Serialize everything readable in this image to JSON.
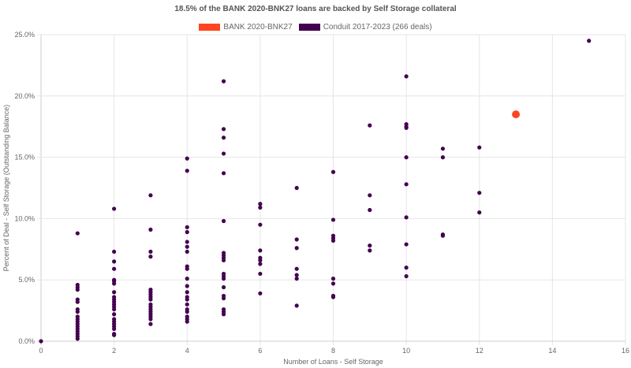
{
  "chart_data": {
    "type": "scatter",
    "title": "18.5% of the BANK 2020-BNK27 loans are backed by Self Storage collateral",
    "xlabel": "Number of Loans - Self Storage",
    "ylabel": "Percent of Deal - Self Storage (Outstanding Balance)",
    "xlim": [
      0,
      16
    ],
    "ylim": [
      0,
      25
    ],
    "x_ticks": [
      "0",
      "2",
      "4",
      "6",
      "8",
      "10",
      "12",
      "14",
      "16"
    ],
    "y_ticks": [
      "0.0%",
      "5.0%",
      "10.0%",
      "15.0%",
      "20.0%",
      "25.0%"
    ],
    "grid": true,
    "legend_placement": "top",
    "series": [
      {
        "name": "BANK 2020-BNK27",
        "color": "#ff4422",
        "points": [
          [
            13,
            18.5
          ]
        ]
      },
      {
        "name": "Conduit 2017-2023 (266 deals)",
        "color": "#44004f",
        "points": [
          [
            0,
            0.0
          ],
          [
            1,
            8.8
          ],
          [
            1,
            4.6
          ],
          [
            1,
            4.4
          ],
          [
            1,
            4.2
          ],
          [
            1,
            3.4
          ],
          [
            1,
            3.2
          ],
          [
            1,
            2.6
          ],
          [
            1,
            2.4
          ],
          [
            1,
            2.0
          ],
          [
            1,
            1.8
          ],
          [
            1,
            1.6
          ],
          [
            1,
            1.4
          ],
          [
            1,
            1.2
          ],
          [
            1,
            1.0
          ],
          [
            1,
            0.8
          ],
          [
            1,
            0.6
          ],
          [
            1,
            0.4
          ],
          [
            1,
            0.2
          ],
          [
            2,
            10.8
          ],
          [
            2,
            7.3
          ],
          [
            2,
            6.5
          ],
          [
            2,
            5.9
          ],
          [
            2,
            5.0
          ],
          [
            2,
            4.9
          ],
          [
            2,
            4.7
          ],
          [
            2,
            4.0
          ],
          [
            2,
            3.6
          ],
          [
            2,
            3.4
          ],
          [
            2,
            3.2
          ],
          [
            2,
            3.0
          ],
          [
            2,
            2.8
          ],
          [
            2,
            2.6
          ],
          [
            2,
            2.2
          ],
          [
            2,
            1.8
          ],
          [
            2,
            1.6
          ],
          [
            2,
            1.4
          ],
          [
            2,
            1.2
          ],
          [
            2,
            1.0
          ],
          [
            2,
            0.6
          ],
          [
            2,
            0.5
          ],
          [
            3,
            11.9
          ],
          [
            3,
            9.1
          ],
          [
            3,
            7.3
          ],
          [
            3,
            6.9
          ],
          [
            3,
            4.2
          ],
          [
            3,
            4.0
          ],
          [
            3,
            3.8
          ],
          [
            3,
            3.6
          ],
          [
            3,
            3.4
          ],
          [
            3,
            3.0
          ],
          [
            3,
            2.8
          ],
          [
            3,
            2.6
          ],
          [
            3,
            2.4
          ],
          [
            3,
            2.2
          ],
          [
            3,
            2.0
          ],
          [
            3,
            1.8
          ],
          [
            3,
            1.4
          ],
          [
            4,
            14.9
          ],
          [
            4,
            13.9
          ],
          [
            4,
            9.3
          ],
          [
            4,
            8.9
          ],
          [
            4,
            8.1
          ],
          [
            4,
            7.7
          ],
          [
            4,
            7.3
          ],
          [
            4,
            6.1
          ],
          [
            4,
            5.9
          ],
          [
            4,
            5.1
          ],
          [
            4,
            4.5
          ],
          [
            4,
            4.0
          ],
          [
            4,
            3.6
          ],
          [
            4,
            3.4
          ],
          [
            4,
            3.0
          ],
          [
            4,
            2.6
          ],
          [
            4,
            2.4
          ],
          [
            4,
            2.0
          ],
          [
            4,
            1.8
          ],
          [
            4,
            1.6
          ],
          [
            5,
            21.2
          ],
          [
            5,
            17.3
          ],
          [
            5,
            16.6
          ],
          [
            5,
            15.3
          ],
          [
            5,
            13.7
          ],
          [
            5,
            9.8
          ],
          [
            5,
            7.2
          ],
          [
            5,
            7.0
          ],
          [
            5,
            6.8
          ],
          [
            5,
            6.6
          ],
          [
            5,
            5.5
          ],
          [
            5,
            5.3
          ],
          [
            5,
            5.1
          ],
          [
            5,
            4.4
          ],
          [
            5,
            3.7
          ],
          [
            5,
            3.5
          ],
          [
            5,
            2.6
          ],
          [
            5,
            2.4
          ],
          [
            5,
            2.2
          ],
          [
            6,
            11.2
          ],
          [
            6,
            10.9
          ],
          [
            6,
            9.5
          ],
          [
            6,
            7.4
          ],
          [
            6,
            6.8
          ],
          [
            6,
            6.6
          ],
          [
            6,
            6.3
          ],
          [
            6,
            5.5
          ],
          [
            6,
            3.9
          ],
          [
            7,
            12.5
          ],
          [
            7,
            8.3
          ],
          [
            7,
            7.6
          ],
          [
            7,
            5.9
          ],
          [
            7,
            5.4
          ],
          [
            7,
            5.1
          ],
          [
            7,
            2.9
          ],
          [
            8,
            13.8
          ],
          [
            8,
            9.9
          ],
          [
            8,
            8.6
          ],
          [
            8,
            8.4
          ],
          [
            8,
            8.2
          ],
          [
            8,
            5.1
          ],
          [
            8,
            4.7
          ],
          [
            8,
            3.7
          ],
          [
            8,
            3.6
          ],
          [
            9,
            17.6
          ],
          [
            9,
            11.9
          ],
          [
            9,
            10.7
          ],
          [
            9,
            7.8
          ],
          [
            9,
            7.4
          ],
          [
            10,
            21.6
          ],
          [
            10,
            17.7
          ],
          [
            10,
            17.5
          ],
          [
            10,
            17.4
          ],
          [
            10,
            15.0
          ],
          [
            10,
            12.8
          ],
          [
            10,
            10.1
          ],
          [
            10,
            7.9
          ],
          [
            10,
            6.0
          ],
          [
            10,
            5.3
          ],
          [
            11,
            15.7
          ],
          [
            11,
            15.0
          ],
          [
            11,
            8.7
          ],
          [
            11,
            8.6
          ],
          [
            12,
            15.8
          ],
          [
            12,
            12.1
          ],
          [
            12,
            10.5
          ],
          [
            15,
            24.5
          ]
        ]
      }
    ]
  }
}
